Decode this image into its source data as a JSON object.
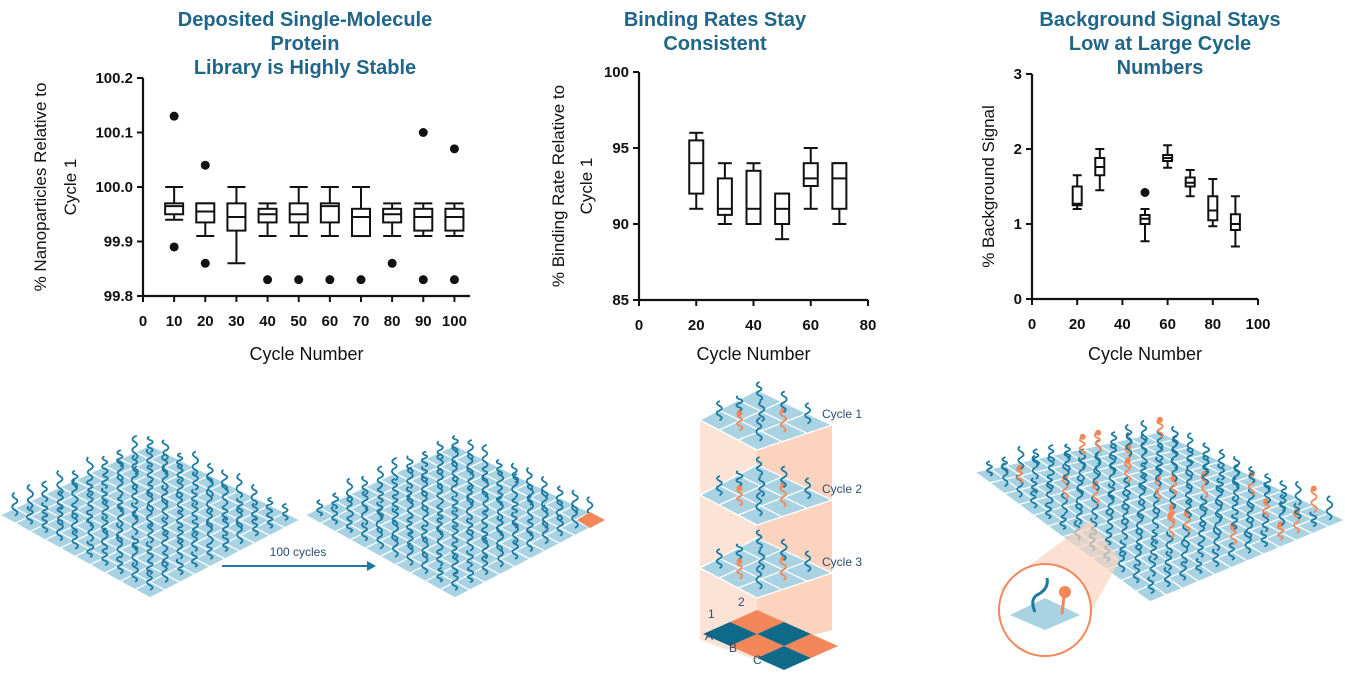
{
  "colors": {
    "title": "#1f6688",
    "tile": "#a9d3e3",
    "strand": "#1a7aa0",
    "accent": "#f4875a",
    "checker_dark": "#0f6a8a",
    "checker_light": "#f4875a"
  },
  "chart_data": [
    {
      "type": "box",
      "title_lines": [
        "Deposited Single-Molecule",
        "Protein",
        "Library is Highly Stable"
      ],
      "xlabel": "Cycle Number",
      "ylabel_lines": [
        "% Nanoparticles Relative to",
        "Cycle 1"
      ],
      "xlim": [
        0,
        105
      ],
      "ylim": [
        99.8,
        100.2
      ],
      "xticks": [
        0,
        10,
        20,
        30,
        40,
        50,
        60,
        70,
        80,
        90,
        100
      ],
      "yticks": [
        "99.8",
        "99.9",
        "100.0",
        "100.1",
        "100.2"
      ],
      "boxes": [
        {
          "x": 10,
          "min": 99.94,
          "q1": 99.95,
          "median": 99.965,
          "q3": 99.97,
          "max": 100.0,
          "outliers": [
            100.13,
            99.89
          ]
        },
        {
          "x": 20,
          "min": 99.91,
          "q1": 99.935,
          "median": 99.955,
          "q3": 99.97,
          "max": 99.97,
          "outliers": [
            100.04,
            99.86
          ]
        },
        {
          "x": 30,
          "min": 99.86,
          "q1": 99.92,
          "median": 99.945,
          "q3": 99.97,
          "max": 100.0,
          "outliers": []
        },
        {
          "x": 40,
          "min": 99.91,
          "q1": 99.935,
          "median": 99.95,
          "q3": 99.96,
          "max": 99.97,
          "outliers": [
            99.83
          ]
        },
        {
          "x": 50,
          "min": 99.91,
          "q1": 99.935,
          "median": 99.95,
          "q3": 99.97,
          "max": 100.0,
          "outliers": [
            99.83
          ]
        },
        {
          "x": 60,
          "min": 99.91,
          "q1": 99.935,
          "median": 99.965,
          "q3": 99.97,
          "max": 100.0,
          "outliers": [
            99.83
          ]
        },
        {
          "x": 70,
          "min": 99.91,
          "q1": 99.91,
          "median": 99.945,
          "q3": 99.96,
          "max": 100.0,
          "outliers": [
            99.83
          ]
        },
        {
          "x": 80,
          "min": 99.91,
          "q1": 99.935,
          "median": 99.95,
          "q3": 99.96,
          "max": 99.97,
          "outliers": [
            99.86
          ]
        },
        {
          "x": 90,
          "min": 99.91,
          "q1": 99.92,
          "median": 99.945,
          "q3": 99.96,
          "max": 99.97,
          "outliers": [
            100.1,
            99.83
          ]
        },
        {
          "x": 100,
          "min": 99.91,
          "q1": 99.92,
          "median": 99.945,
          "q3": 99.96,
          "max": 99.97,
          "outliers": [
            100.07,
            99.83
          ]
        }
      ]
    },
    {
      "type": "box",
      "title_lines": [
        "Binding Rates Stay",
        "Consistent"
      ],
      "xlabel": "Cycle Number",
      "ylabel_lines": [
        "% Binding Rate Relative to",
        "Cycle 1"
      ],
      "xlim": [
        0,
        80
      ],
      "ylim": [
        85,
        100
      ],
      "xticks": [
        0,
        20,
        40,
        60,
        80
      ],
      "yticks": [
        "85",
        "90",
        "95",
        "100"
      ],
      "boxes": [
        {
          "x": 20,
          "min": 91,
          "q1": 92,
          "median": 94,
          "q3": 95.5,
          "max": 96,
          "outliers": []
        },
        {
          "x": 30,
          "min": 90,
          "q1": 90.6,
          "median": 91,
          "q3": 93,
          "max": 94,
          "outliers": []
        },
        {
          "x": 40,
          "min": 90,
          "q1": 90,
          "median": 91,
          "q3": 93.5,
          "max": 94,
          "outliers": []
        },
        {
          "x": 50,
          "min": 89,
          "q1": 90,
          "median": 91,
          "q3": 92,
          "max": 92,
          "outliers": []
        },
        {
          "x": 60,
          "min": 91,
          "q1": 92.5,
          "median": 93,
          "q3": 94,
          "max": 95,
          "outliers": []
        },
        {
          "x": 70,
          "min": 90,
          "q1": 91,
          "median": 93,
          "q3": 94,
          "max": 94,
          "outliers": []
        }
      ]
    },
    {
      "type": "box",
      "title_lines": [
        "Background Signal Stays",
        "Low at Large Cycle",
        "Numbers"
      ],
      "xlabel": "Cycle Number",
      "ylabel_lines": [
        "% Background Signal"
      ],
      "xlim": [
        0,
        100
      ],
      "ylim": [
        0,
        3
      ],
      "xticks": [
        0,
        20,
        40,
        60,
        80,
        100
      ],
      "yticks": [
        "0",
        "1",
        "2",
        "3"
      ],
      "boxes": [
        {
          "x": 20,
          "min": 1.2,
          "q1": 1.25,
          "median": 1.27,
          "q3": 1.5,
          "max": 1.65,
          "outliers": []
        },
        {
          "x": 30,
          "min": 1.45,
          "q1": 1.65,
          "median": 1.76,
          "q3": 1.88,
          "max": 2.0,
          "outliers": []
        },
        {
          "x": 50,
          "min": 0.77,
          "q1": 1.0,
          "median": 1.07,
          "q3": 1.12,
          "max": 1.2,
          "outliers": [
            1.42
          ]
        },
        {
          "x": 60,
          "min": 1.75,
          "q1": 1.84,
          "median": 1.88,
          "q3": 1.92,
          "max": 2.05,
          "outliers": []
        },
        {
          "x": 70,
          "min": 1.37,
          "q1": 1.5,
          "median": 1.55,
          "q3": 1.62,
          "max": 1.72,
          "outliers": []
        },
        {
          "x": 80,
          "min": 0.97,
          "q1": 1.05,
          "median": 1.18,
          "q3": 1.37,
          "max": 1.6,
          "outliers": []
        },
        {
          "x": 90,
          "min": 0.7,
          "q1": 0.92,
          "median": 1.0,
          "q3": 1.13,
          "max": 1.37,
          "outliers": []
        }
      ]
    }
  ],
  "illustrations": {
    "arrow_label": "100 cycles",
    "cycle_labels": [
      "Cycle 1",
      "Cycle 2",
      "Cycle 3"
    ],
    "checker_rows": [
      "A",
      "B",
      "C"
    ],
    "checker_cols": [
      "1",
      "2"
    ]
  }
}
